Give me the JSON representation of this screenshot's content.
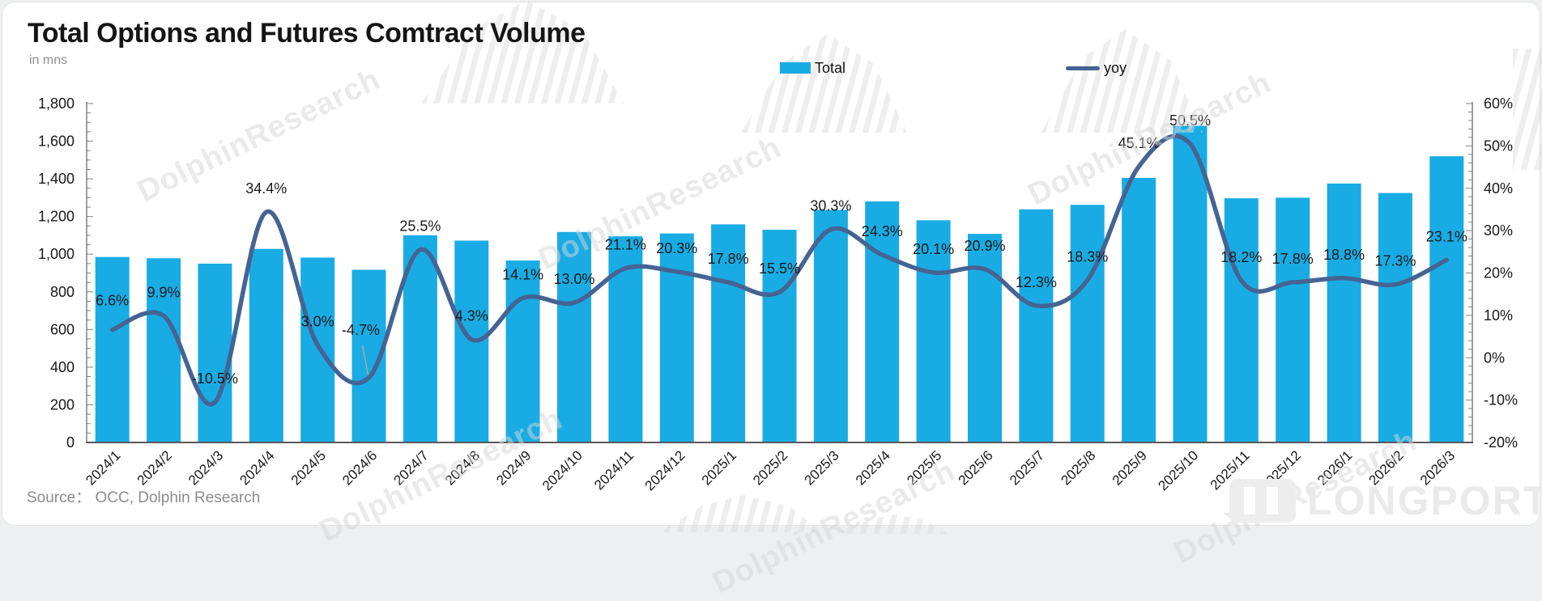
{
  "header": {
    "title": "Total Options and Futures Comtract Volume",
    "unit_label": "in mns"
  },
  "legend": {
    "items": [
      {
        "label": "Total",
        "type": "bar",
        "color": "#19ACE4"
      },
      {
        "label": "yoy",
        "type": "line",
        "color": "#456493"
      }
    ]
  },
  "source": {
    "text": "Source： OCC, Dolphin Research"
  },
  "watermark": {
    "text": "DolphinResearch",
    "brand": "LONGPORT"
  },
  "chart_data": {
    "type": "combo_bar_line",
    "title": "Total Options and Futures Comtract Volume",
    "subtitle": "in mns",
    "legend_position": "top",
    "grid": "none",
    "categories": [
      "2024/1",
      "2024/2",
      "2024/3",
      "2024/4",
      "2024/5",
      "2024/6",
      "2024/7",
      "2024/8",
      "2024/9",
      "2024/10",
      "2024/11",
      "2024/12",
      "2025/1",
      "2025/2",
      "2025/3",
      "2025/4",
      "2025/5",
      "2025/6",
      "2025/7",
      "2025/8",
      "2025/9",
      "2025/10",
      "2025/11",
      "2025/12",
      "2026/1",
      "2026/2",
      "2026/3"
    ],
    "series": [
      {
        "name": "Total",
        "type": "bar",
        "axis": "left",
        "color": "#19ACE4",
        "values": [
          985,
          978,
          950,
          1028,
          982,
          917,
          1100,
          1072,
          966,
          1118,
          1095,
          1110,
          1158,
          1130,
          1235,
          1280,
          1180,
          1108,
          1238,
          1262,
          1405,
          1682,
          1297,
          1300,
          1375,
          1325,
          1520
        ]
      },
      {
        "name": "yoy",
        "type": "line",
        "axis": "right",
        "color": "#456493",
        "values_pct": [
          6.6,
          9.9,
          -10.5,
          34.4,
          3.0,
          -4.7,
          25.5,
          4.3,
          14.1,
          13.0,
          21.1,
          20.3,
          17.8,
          15.5,
          30.3,
          24.3,
          20.1,
          20.9,
          12.3,
          18.3,
          45.1,
          50.5,
          18.2,
          17.8,
          18.8,
          17.3,
          23.1
        ],
        "point_labels": [
          "6.6%",
          "9.9%",
          "-10.5%",
          "34.4%",
          "3.0%",
          "-4.7%",
          "25.5%",
          "4.3%",
          "14.1%",
          "13.0%",
          "21.1%",
          "20.3%",
          "17.8%",
          "15.5%",
          "30.3%",
          "24.3%",
          "20.1%",
          "20.9%",
          "12.3%",
          "18.3%",
          "45.1%",
          "50.5%",
          "18.2%",
          "17.8%",
          "18.8%",
          "17.3%",
          "23.1%"
        ]
      }
    ],
    "left_axis": {
      "min": 0,
      "max": 1800,
      "major_step": 200,
      "minor_step": 50,
      "tick_labels": [
        "0",
        "200",
        "400",
        "600",
        "800",
        "1,000",
        "1,200",
        "1,400",
        "1,600",
        "1,800"
      ]
    },
    "right_axis": {
      "min": -20,
      "max": 60,
      "major_step": 10,
      "minor_step": 2,
      "tick_labels": [
        "-20%",
        "-10%",
        "0%",
        "10%",
        "20%",
        "30%",
        "40%",
        "50%",
        "60%"
      ]
    }
  }
}
